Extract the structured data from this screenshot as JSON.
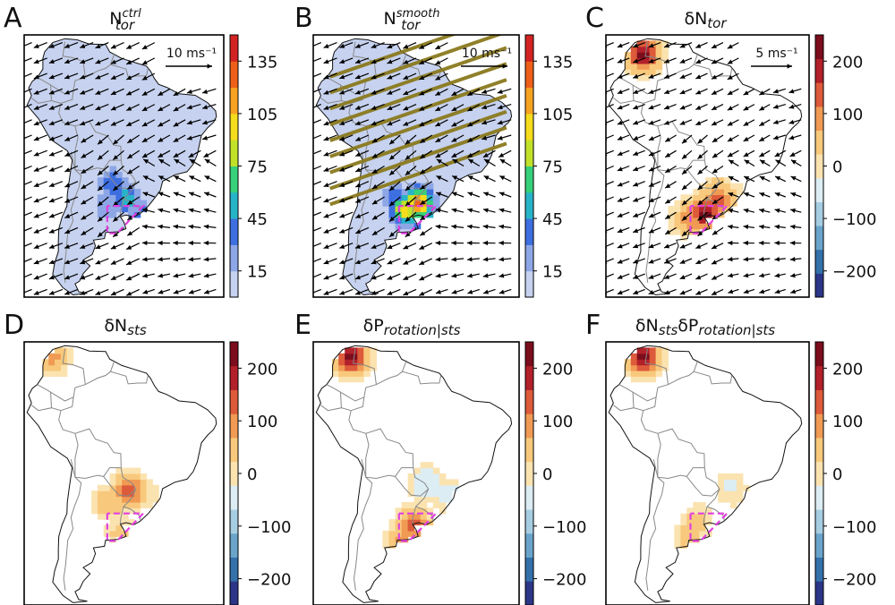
{
  "figure": {
    "panels": [
      {
        "id": "A",
        "title_main": "N",
        "title_sup": "ctrl",
        "title_sub": "tor",
        "colorbar": "count",
        "scale_label": "10 ms⁻¹",
        "wind": true,
        "hatch": false,
        "field": [
          {
            "x": -53,
            "y": -35,
            "v": 45
          },
          {
            "x": -57,
            "y": -30,
            "v": 60
          },
          {
            "x": -60,
            "y": -26,
            "v": 45
          },
          {
            "x": -62,
            "y": -32,
            "v": 30
          },
          {
            "x": -63,
            "y": -25,
            "v": 15
          }
        ]
      },
      {
        "id": "B",
        "title_main": "N",
        "title_sup": "smooth",
        "title_sub": "tor",
        "colorbar": "count",
        "scale_label": "10 ms⁻¹",
        "wind": true,
        "hatch": true,
        "field": [
          {
            "x": -57,
            "y": -31,
            "v": 135
          },
          {
            "x": -60,
            "y": -33,
            "v": 105
          },
          {
            "x": -56,
            "y": -35,
            "v": 75
          },
          {
            "x": -62,
            "y": -30,
            "v": 45
          },
          {
            "x": -60,
            "y": -38,
            "v": 15
          }
        ]
      },
      {
        "id": "C",
        "title_pre": "δN",
        "title_sub": "tor",
        "colorbar": "diff",
        "scale_label": "5 ms⁻¹",
        "wind": true,
        "hatch": false,
        "field": [
          {
            "x": -58,
            "y": -34,
            "v": 220
          },
          {
            "x": -55,
            "y": -30,
            "v": 140
          },
          {
            "x": -61,
            "y": -35,
            "v": 120
          },
          {
            "x": -52,
            "y": -30,
            "v": 40
          },
          {
            "x": -64,
            "y": -36,
            "v": 30
          },
          {
            "x": -73,
            "y": 8,
            "v": 240
          }
        ]
      },
      {
        "id": "D",
        "title_pre": "δN",
        "title_sub": "sts",
        "colorbar": "diff",
        "wind": false,
        "hatch": false,
        "field": [
          {
            "x": -58,
            "y": -37,
            "v": 40
          },
          {
            "x": -61,
            "y": -29,
            "v": 70
          },
          {
            "x": -56,
            "y": -26,
            "v": 160
          },
          {
            "x": -53,
            "y": -27,
            "v": -30
          },
          {
            "x": -75,
            "y": 9,
            "v": 80
          }
        ]
      },
      {
        "id": "E",
        "title_pre": "δP",
        "title_sub": "rotation|sts",
        "colorbar": "diff",
        "wind": false,
        "hatch": false,
        "field": [
          {
            "x": -58,
            "y": -35,
            "v": 130
          },
          {
            "x": -60,
            "y": -39,
            "v": 110
          },
          {
            "x": -55,
            "y": -24,
            "v": -70
          },
          {
            "x": -50,
            "y": -27,
            "v": -40
          },
          {
            "x": -73,
            "y": 9,
            "v": 240
          }
        ]
      },
      {
        "id": "F",
        "title_pre": "δN",
        "title_sub1": "sts",
        "title_mid": "δP",
        "title_sub": "rotation|sts",
        "colorbar": "diff",
        "wind": false,
        "hatch": false,
        "field": [
          {
            "x": -60,
            "y": -34,
            "v": 40
          },
          {
            "x": -62,
            "y": -38,
            "v": 40
          },
          {
            "x": -52,
            "y": -25,
            "v": -30
          },
          {
            "x": -49,
            "y": -28,
            "v": -20
          },
          {
            "x": -73,
            "y": 9,
            "v": 240
          }
        ]
      }
    ]
  },
  "colorbars": {
    "count": {
      "vmin": 0,
      "vmax": 150,
      "ticks": [
        "135",
        "105",
        "75",
        "45",
        "15"
      ],
      "tick_values": [
        135,
        105,
        75,
        45,
        15
      ],
      "colors": [
        "#c6d2ef",
        "#8da6e6",
        "#3e6fe0",
        "#28b4c8",
        "#36d17a",
        "#c2e229",
        "#f5dc1c",
        "#f7a322",
        "#ee6019",
        "#d42323"
      ]
    },
    "diff": {
      "vmin": -250,
      "vmax": 250,
      "ticks": [
        "200",
        "100",
        "0",
        "−100",
        "−200"
      ],
      "tick_values": [
        200,
        100,
        0,
        -100,
        -200
      ],
      "colors": [
        "#2c3688",
        "#3471aa",
        "#6aa4ca",
        "#a6cde2",
        "#dcedf4",
        "#fbe3b0",
        "#f8c97c",
        "#f09a54",
        "#dd5a3a",
        "#b2202a",
        "#7c0d1d"
      ]
    }
  },
  "map_extent": {
    "lon": [
      -82,
      -33
    ],
    "lat": [
      -56,
      13
    ]
  },
  "colors": {
    "dashed_box": "#e040e0",
    "hatch": "#8b7a1e",
    "arrow": "#000000",
    "coast": "#111111",
    "border": "#888888"
  }
}
